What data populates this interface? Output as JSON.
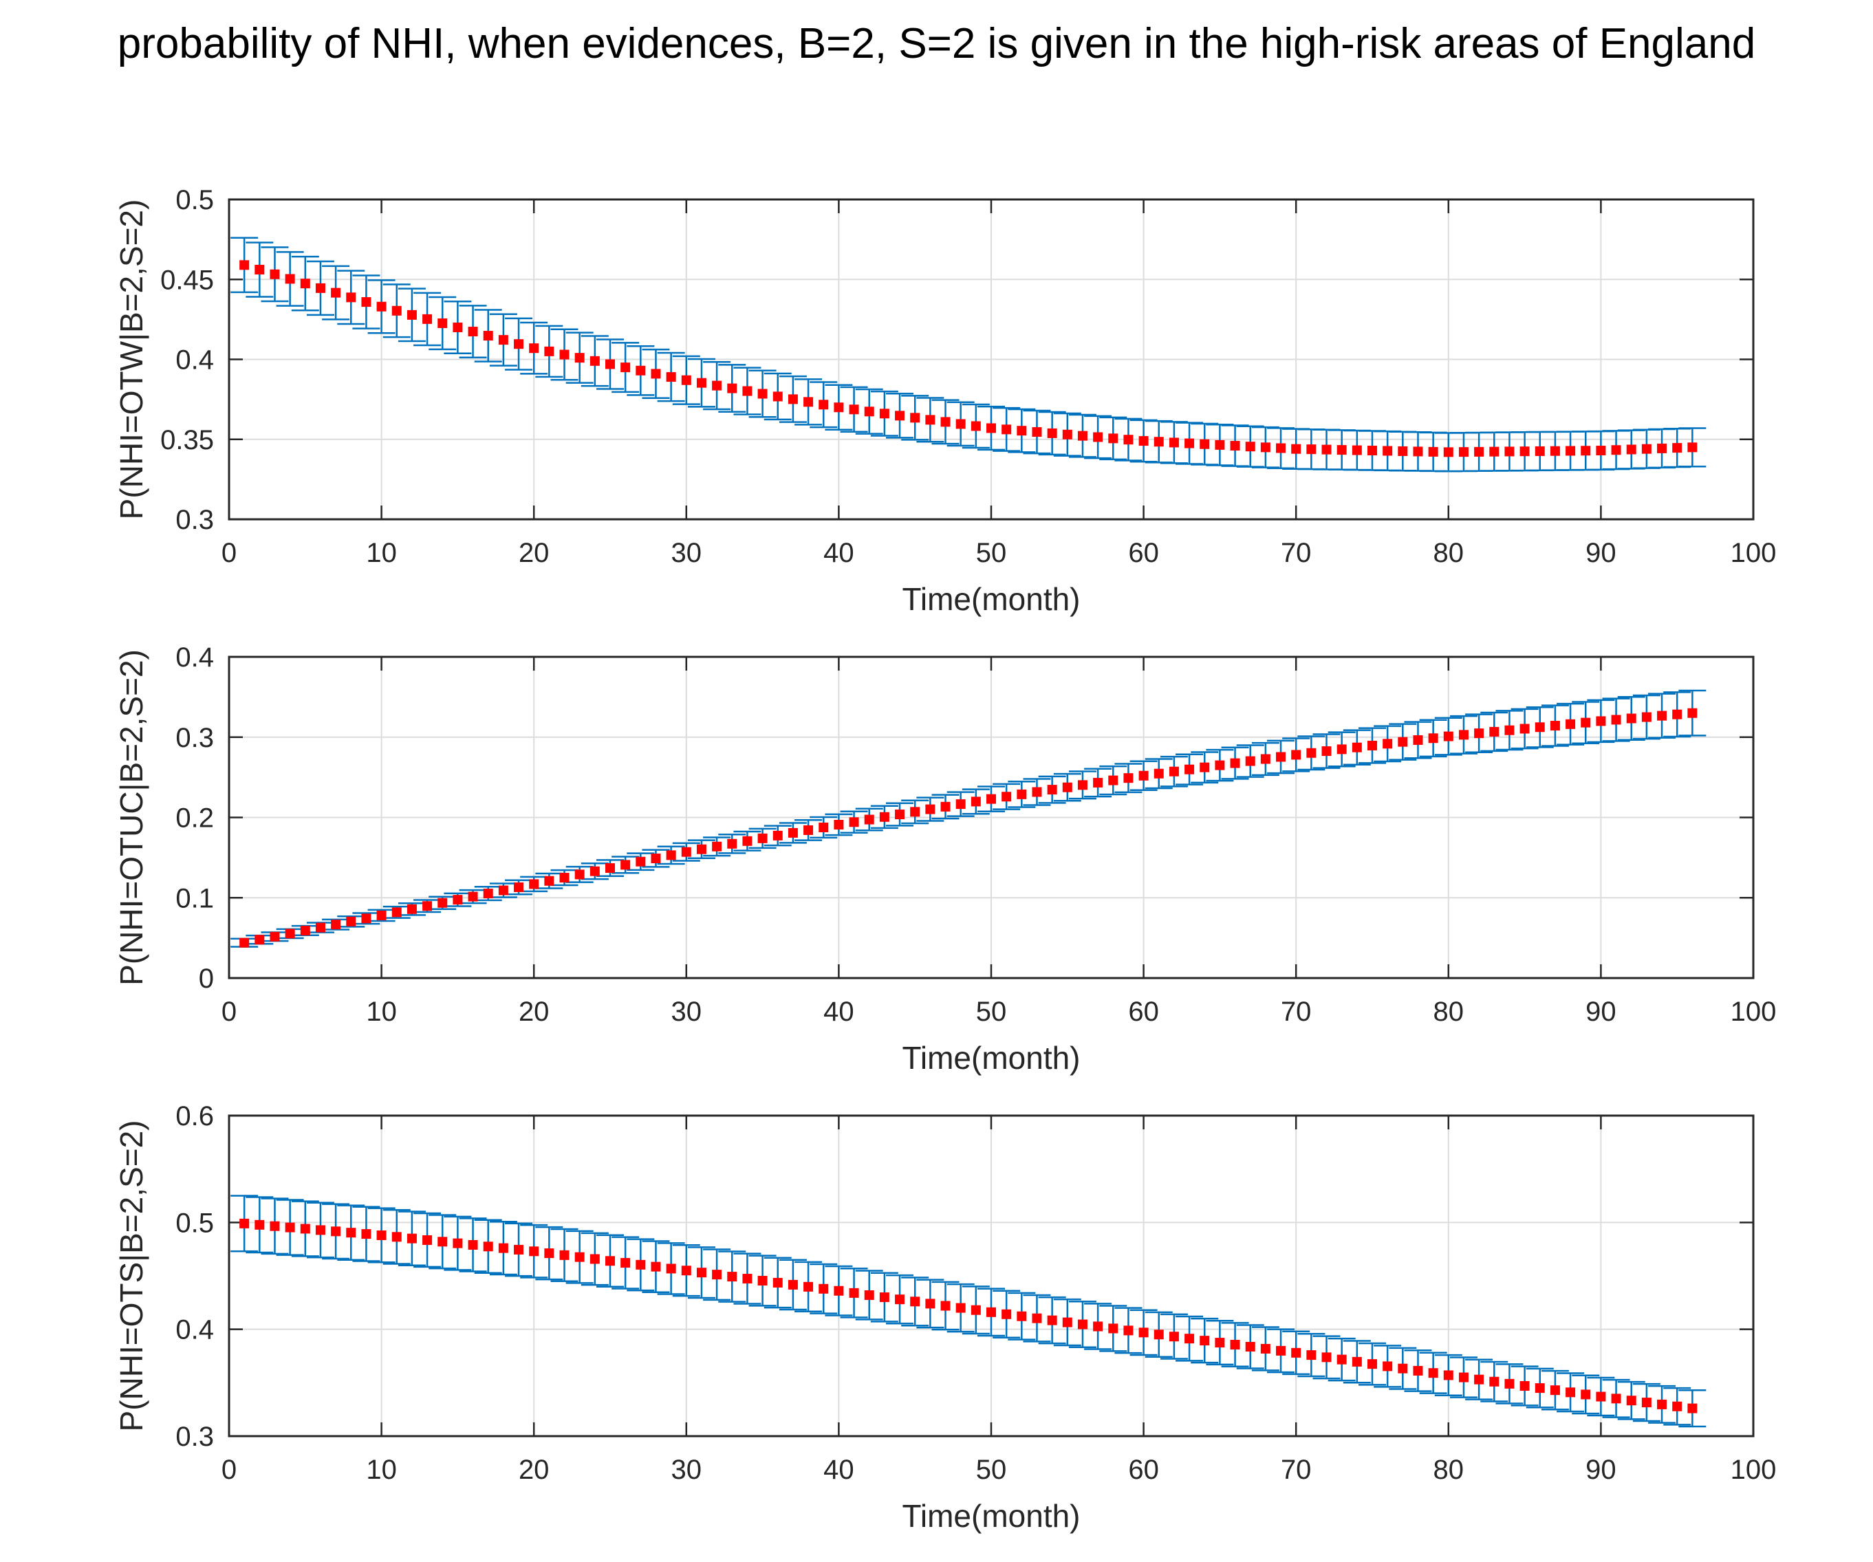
{
  "figure": {
    "title": "probability of NHI, when evidences, B=2, S=2 is given in the high-risk areas of England"
  },
  "colors": {
    "marker": "#ff0000",
    "errorbar": "#0072bd",
    "grid": "#dcdcdc",
    "axis": "#262626"
  },
  "chart_data": [
    {
      "type": "errorbar",
      "name": "otw",
      "title": "",
      "xlabel": "Time(month)",
      "ylabel": "P(NHI=OTW|B=2,S=2)",
      "xlim": [
        0,
        100
      ],
      "ylim": [
        0.3,
        0.5
      ],
      "xticks": [
        0,
        10,
        20,
        30,
        40,
        50,
        60,
        70,
        80,
        90,
        100
      ],
      "xtick_labels": [
        "0",
        "10",
        "20",
        "30",
        "40",
        "50",
        "60",
        "70",
        "80",
        "90",
        "100"
      ],
      "yticks": [
        0.3,
        0.35,
        0.4,
        0.45,
        0.5
      ],
      "ytick_labels": [
        "0.3",
        "0.35",
        "0.4",
        "0.45",
        "0.5"
      ],
      "grid": true,
      "x_range": [
        1,
        96
      ],
      "mean_anchors": [
        [
          1,
          0.459
        ],
        [
          10,
          0.433
        ],
        [
          20,
          0.407
        ],
        [
          30,
          0.387
        ],
        [
          40,
          0.37
        ],
        [
          50,
          0.357
        ],
        [
          60,
          0.349
        ],
        [
          70,
          0.344
        ],
        [
          80,
          0.342
        ],
        [
          90,
          0.343
        ],
        [
          96,
          0.345
        ]
      ],
      "error_halfwidth_anchors": [
        [
          1,
          0.017
        ],
        [
          20,
          0.016
        ],
        [
          40,
          0.014
        ],
        [
          60,
          0.013
        ],
        [
          80,
          0.012
        ],
        [
          96,
          0.012
        ]
      ]
    },
    {
      "type": "errorbar",
      "name": "otuc",
      "title": "",
      "xlabel": "Time(month)",
      "ylabel": "P(NHI=OTUC|B=2,S=2)",
      "xlim": [
        0,
        100
      ],
      "ylim": [
        0,
        0.4
      ],
      "xticks": [
        0,
        10,
        20,
        30,
        40,
        50,
        60,
        70,
        80,
        90,
        100
      ],
      "xtick_labels": [
        "0",
        "10",
        "20",
        "30",
        "40",
        "50",
        "60",
        "70",
        "80",
        "90",
        "100"
      ],
      "yticks": [
        0,
        0.1,
        0.2,
        0.3,
        0.4
      ],
      "ytick_labels": [
        "0",
        "0.1",
        "0.2",
        "0.3",
        "0.4"
      ],
      "grid": true,
      "x_range": [
        1,
        96
      ],
      "mean_anchors": [
        [
          1,
          0.044
        ],
        [
          10,
          0.078
        ],
        [
          20,
          0.117
        ],
        [
          30,
          0.157
        ],
        [
          40,
          0.191
        ],
        [
          50,
          0.223
        ],
        [
          60,
          0.252
        ],
        [
          70,
          0.278
        ],
        [
          80,
          0.301
        ],
        [
          90,
          0.32
        ],
        [
          96,
          0.33
        ]
      ],
      "error_halfwidth_anchors": [
        [
          1,
          0.005
        ],
        [
          20,
          0.009
        ],
        [
          40,
          0.013
        ],
        [
          60,
          0.018
        ],
        [
          80,
          0.023
        ],
        [
          96,
          0.028
        ]
      ]
    },
    {
      "type": "errorbar",
      "name": "ots",
      "title": "",
      "xlabel": "Time(month)",
      "ylabel": "P(NHI=OTS|B=2,S=2)",
      "xlim": [
        0,
        100
      ],
      "ylim": [
        0.3,
        0.6
      ],
      "xticks": [
        0,
        10,
        20,
        30,
        40,
        50,
        60,
        70,
        80,
        90,
        100
      ],
      "xtick_labels": [
        "0",
        "10",
        "20",
        "30",
        "40",
        "50",
        "60",
        "70",
        "80",
        "90",
        "100"
      ],
      "yticks": [
        0.3,
        0.4,
        0.5,
        0.6
      ],
      "ytick_labels": [
        "0.3",
        "0.4",
        "0.5",
        "0.6"
      ],
      "grid": true,
      "x_range": [
        1,
        96
      ],
      "mean_anchors": [
        [
          1,
          0.499
        ],
        [
          10,
          0.488
        ],
        [
          20,
          0.473
        ],
        [
          30,
          0.455
        ],
        [
          40,
          0.436
        ],
        [
          50,
          0.416
        ],
        [
          60,
          0.397
        ],
        [
          70,
          0.378
        ],
        [
          80,
          0.357
        ],
        [
          90,
          0.337
        ],
        [
          96,
          0.326
        ]
      ],
      "error_halfwidth_anchors": [
        [
          1,
          0.026
        ],
        [
          40,
          0.023
        ],
        [
          70,
          0.02
        ],
        [
          96,
          0.017
        ]
      ]
    }
  ]
}
